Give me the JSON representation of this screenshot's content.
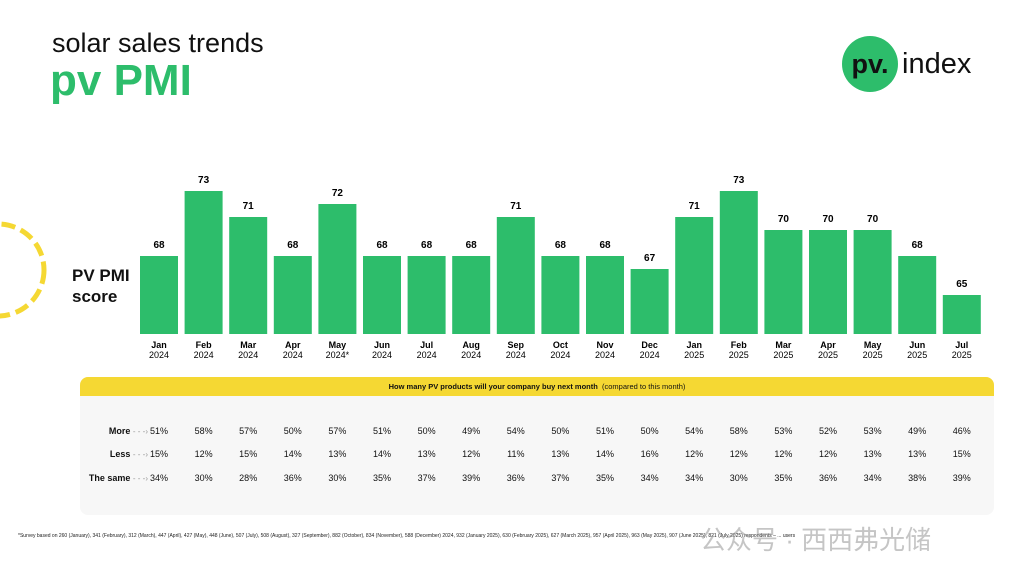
{
  "header": {
    "subtitle": "solar sales trends",
    "title": "pv PMI"
  },
  "logo": {
    "mark": "pv.",
    "text": "index"
  },
  "colors": {
    "bar": "#2dbd6b",
    "table_header": "#f5d833",
    "accent_circle": "#f5d833"
  },
  "chart_data": {
    "type": "bar",
    "ylabel": "PV PMI score",
    "categories": [
      [
        "Jan",
        "2024"
      ],
      [
        "Feb",
        "2024"
      ],
      [
        "Mar",
        "2024"
      ],
      [
        "Apr",
        "2024"
      ],
      [
        "May",
        "2024*"
      ],
      [
        "Jun",
        "2024"
      ],
      [
        "Jul",
        "2024"
      ],
      [
        "Aug",
        "2024"
      ],
      [
        "Sep",
        "2024"
      ],
      [
        "Oct",
        "2024"
      ],
      [
        "Nov",
        "2024"
      ],
      [
        "Dec",
        "2024"
      ],
      [
        "Jan",
        "2025"
      ],
      [
        "Feb",
        "2025"
      ],
      [
        "Mar",
        "2025"
      ],
      [
        "Apr",
        "2025"
      ],
      [
        "May",
        "2025"
      ],
      [
        "Jun",
        "2025"
      ],
      [
        "Jul",
        "2025"
      ]
    ],
    "values": [
      68,
      73,
      71,
      68,
      72,
      68,
      68,
      68,
      71,
      68,
      68,
      67,
      71,
      73,
      70,
      70,
      70,
      68,
      65
    ],
    "grid": false
  },
  "table": {
    "question": "How many PV products will your company buy next month",
    "qualifier": "(compared to this month)",
    "rows": [
      {
        "label": "More",
        "values": [
          "51%",
          "58%",
          "57%",
          "50%",
          "57%",
          "51%",
          "50%",
          "49%",
          "54%",
          "50%",
          "51%",
          "50%",
          "54%",
          "58%",
          "53%",
          "52%",
          "53%",
          "49%",
          "46%"
        ]
      },
      {
        "label": "Less",
        "values": [
          "15%",
          "12%",
          "15%",
          "14%",
          "13%",
          "14%",
          "13%",
          "12%",
          "11%",
          "13%",
          "14%",
          "16%",
          "12%",
          "12%",
          "12%",
          "12%",
          "13%",
          "13%",
          "15%"
        ]
      },
      {
        "label": "The same",
        "values": [
          "34%",
          "30%",
          "28%",
          "36%",
          "30%",
          "35%",
          "37%",
          "39%",
          "36%",
          "37%",
          "35%",
          "34%",
          "34%",
          "30%",
          "35%",
          "36%",
          "34%",
          "38%",
          "39%"
        ]
      }
    ]
  },
  "footnote": "*Survey based on 260 (January), 341 (February), 312 (March), 447 (April), 427 (May), 448 (June), 507 (July), 508 (August), 327 (September), 882 (October), 834 (November), 588 (December) 2024, 932 (January 2025), 630 (February 2025), 627 (March 2025), 957 (April 2025), 963 (May 2025), 907 (June 2025), 821 (July 2025) respondents – ... users",
  "watermark": "公众号 · 西西弗光储"
}
